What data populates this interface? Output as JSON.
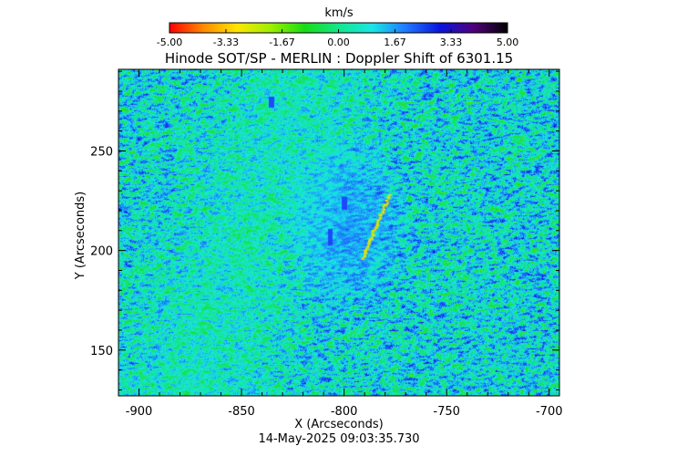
{
  "colorbar": {
    "unit": "km/s",
    "range": [
      -5.0,
      5.0
    ],
    "tick_labels": [
      "-5.00",
      "-3.33",
      "-1.67",
      "0.00",
      "1.67",
      "3.33",
      "5.00"
    ],
    "colormap": [
      "#ff0000",
      "#ff8a00",
      "#ffe600",
      "#9cf000",
      "#19dc14",
      "#14e68c",
      "#19e6e6",
      "#1e78ff",
      "#0a14dc",
      "#50007a",
      "#000000"
    ]
  },
  "chart_data": {
    "type": "heatmap",
    "title": "Hinode SOT/SP - MERLIN : Doppler Shift of 6301.15",
    "xlabel": "X (Arcseconds)",
    "ylabel": "Y (Arcseconds)",
    "xlim": [
      -910,
      -695
    ],
    "ylim": [
      127,
      291
    ],
    "x_ticks": [
      -900,
      -850,
      -800,
      -750,
      -700
    ],
    "x_tick_labels": [
      "-900",
      "-850",
      "-800",
      "-750",
      "-700"
    ],
    "y_ticks": [
      150,
      200,
      250
    ],
    "y_tick_labels": [
      "150",
      "200",
      "250"
    ],
    "value_unit": "km/s",
    "value_range": [
      -5.0,
      5.0
    ]
  },
  "footer": {
    "timestamp": "14-May-2025 09:03:35.730"
  }
}
